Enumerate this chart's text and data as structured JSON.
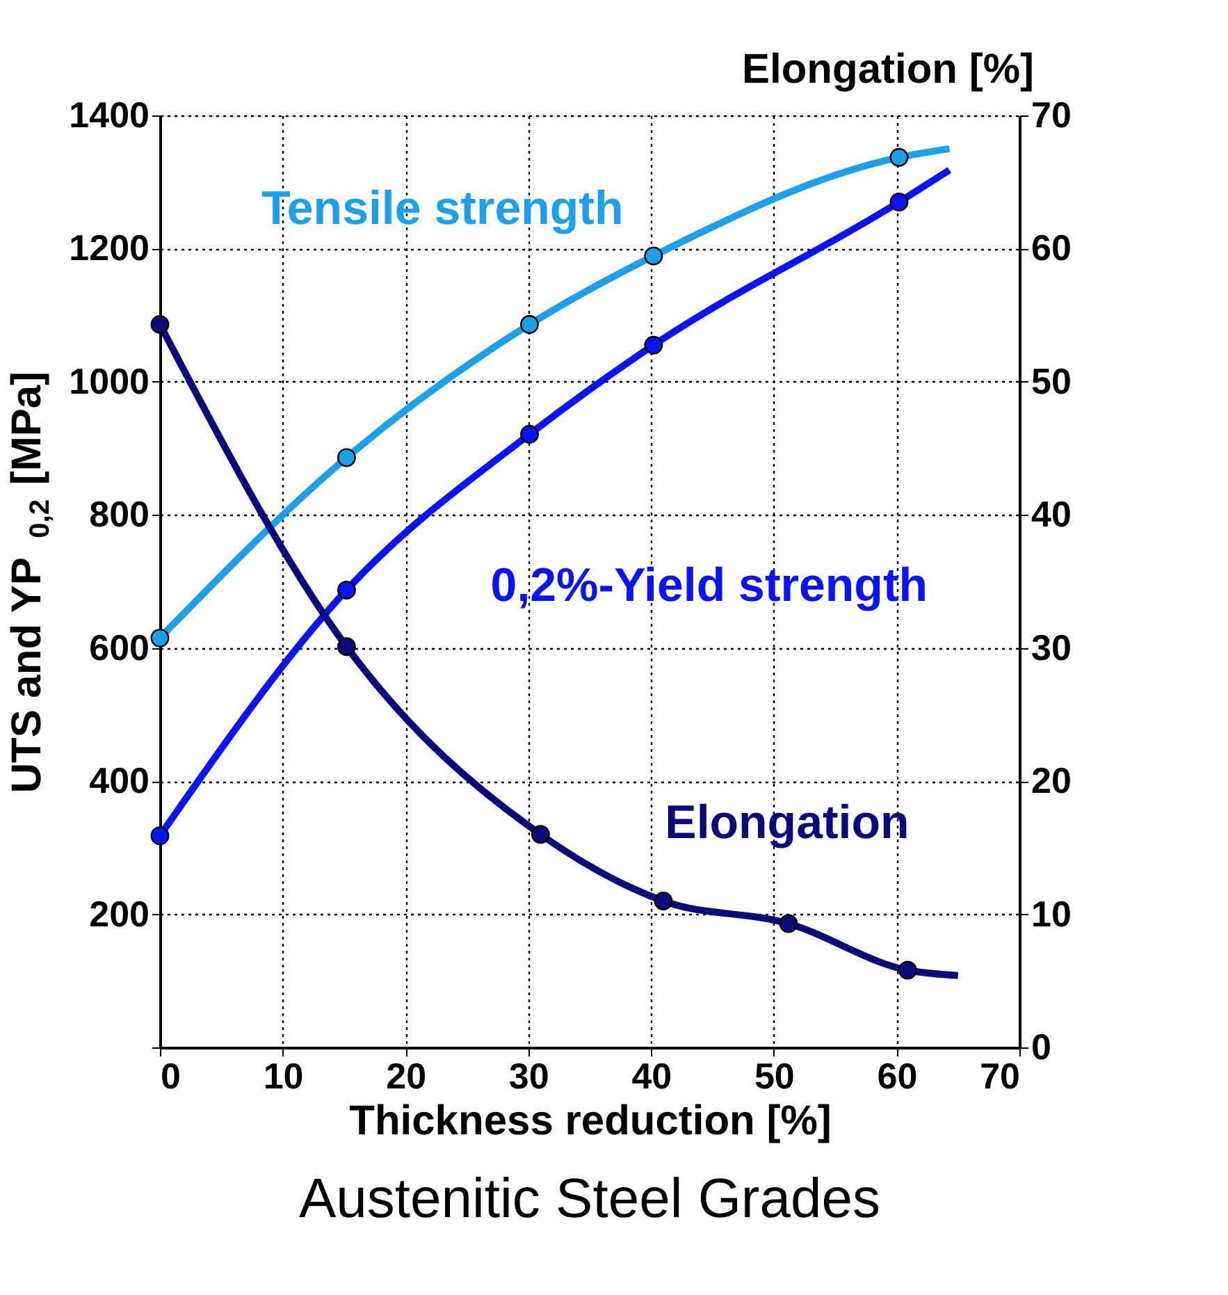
{
  "chart_data": {
    "type": "line",
    "title": "Austenitic Steel Grades",
    "xlabel": "Thickness reduction [%]",
    "ylabel": "UTS and YP$_{0,2}$ [MPa]",
    "y2label": "Elongation [%]",
    "xlim": [
      0,
      70
    ],
    "xticks": [
      0,
      10,
      20,
      30,
      40,
      50,
      60,
      70
    ],
    "ylim": [
      0,
      1400
    ],
    "yticks": [
      {
        "value": 0,
        "label": null
      },
      200,
      400,
      600,
      800,
      1000,
      1200,
      1400
    ],
    "y2lim": [
      0,
      70
    ],
    "y2ticks": [
      0,
      10,
      20,
      30,
      40,
      50,
      60,
      70
    ],
    "grid": true,
    "line_style": "solid",
    "series": [
      {
        "name": "Tensile strength",
        "marker": "none",
        "color": "#1ea0e8",
        "x": [
          0,
          15.2,
          30.1,
          40.2,
          60.2,
          64.3
        ],
        "values": [
          615,
          886,
          1086,
          1189,
          1337,
          1350
        ]
      },
      {
        "name": "0,2%-Yield strength",
        "marker": "none",
        "color": "#0a14f0",
        "x": [
          0,
          15.2,
          30.1,
          40.2,
          60.2,
          64.3
        ],
        "values": [
          318,
          687,
          921,
          1055,
          1270,
          1318
        ]
      },
      {
        "name": "Elongation",
        "marker": "none",
        "axis": "y2",
        "color": "#0a0a78",
        "x": [
          0,
          15.2,
          31.0,
          41.0,
          51.2,
          60.9,
          65
        ],
        "values": [
          54.3,
          30.1,
          16.0,
          11.0,
          9.3,
          5.8,
          5.4
        ]
      },
      {
        "type": "scatter",
        "marker": "circle",
        "color": "#1ea0e8",
        "x": [
          0,
          15.2,
          30.1,
          40.2,
          60.2
        ],
        "values": [
          615,
          886,
          1086,
          1189,
          1337
        ]
      },
      {
        "type": "scatter",
        "marker": "circle",
        "color": "#0a14f0",
        "x": [
          0,
          15.2,
          30.1,
          40.2,
          60.2
        ],
        "values": [
          318,
          687,
          921,
          1055,
          1270
        ]
      },
      {
        "type": "scatter",
        "marker": "circle",
        "axis": "y2",
        "color": "#0a0a78",
        "x": [
          0,
          15.2,
          31.0,
          41.0,
          51.2,
          60.9
        ],
        "values": [
          54.3,
          30.1,
          16.0,
          11.0,
          9.3,
          5.8
        ]
      }
    ]
  }
}
